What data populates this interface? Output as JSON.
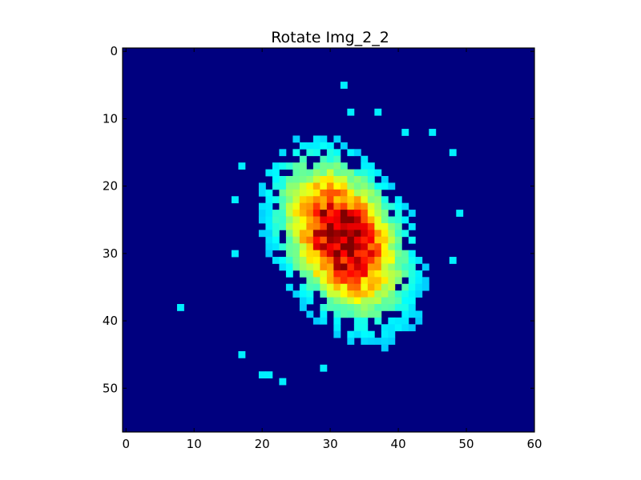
{
  "chart_data": {
    "type": "heatmap",
    "title": "Rotate Img_2_2",
    "xlabel": "",
    "ylabel": "",
    "colormap": "jet",
    "background_color": "#00007f",
    "x_ticks": [
      "0",
      "10",
      "20",
      "30",
      "40",
      "50",
      "60"
    ],
    "y_ticks": [
      "0",
      "10",
      "20",
      "30",
      "40",
      "50"
    ],
    "xlim": [
      0,
      60
    ],
    "ylim": [
      56.5,
      -0.5
    ],
    "grid": false,
    "legend": "none",
    "distribution": {
      "description_free": true,
      "center": [
        31.8,
        27.8
      ],
      "peak_value": 1.0,
      "sigma_major": 7.2,
      "sigma_minor": 4.6,
      "rotation_deg": 62,
      "threshold": 0.06
    },
    "outlier_points": [
      {
        "x": 32,
        "y": 5
      },
      {
        "x": 8,
        "y": 38
      },
      {
        "x": 17,
        "y": 45
      },
      {
        "x": 20,
        "y": 48
      },
      {
        "x": 21,
        "y": 48
      },
      {
        "x": 23,
        "y": 49
      },
      {
        "x": 29,
        "y": 47
      },
      {
        "x": 48,
        "y": 31
      },
      {
        "x": 49,
        "y": 24
      },
      {
        "x": 16,
        "y": 22
      },
      {
        "x": 17,
        "y": 17
      },
      {
        "x": 33,
        "y": 9
      },
      {
        "x": 37,
        "y": 9
      },
      {
        "x": 41,
        "y": 12
      },
      {
        "x": 45,
        "y": 12
      },
      {
        "x": 48,
        "y": 15
      },
      {
        "x": 16,
        "y": 30
      }
    ]
  }
}
